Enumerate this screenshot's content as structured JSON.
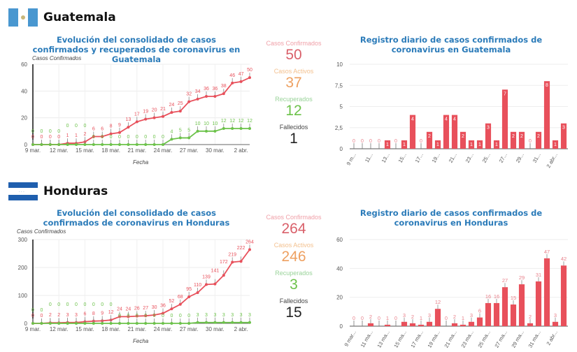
{
  "colors": {
    "confirmed": "#e8505b",
    "recovered": "#6cc24a",
    "title": "#2b7bb9",
    "active": "#eea060",
    "deaths": "#222222"
  },
  "guatemala": {
    "name": "Guatemala",
    "line_title": "Evolución del consolidado de casos confirmados y recuperados de coronavirus en Guatemala",
    "bar_title": "Registro diario de casos confirmados de coronavirus en Guatemala",
    "stats": {
      "confirmed_label": "Casos Confirmados",
      "confirmed": "50",
      "active_label": "Casos Activos",
      "active": "37",
      "recovered_label": "Recuperados",
      "recovered": "12",
      "deaths_label": "Fallecidos",
      "deaths": "1"
    }
  },
  "honduras": {
    "name": "Honduras",
    "line_title": "Evolución del consolidado de casos confirmados de coronavirus en Honduras",
    "bar_title": "Registro diario de casos confirmados de coronavirus en Honduras",
    "stats": {
      "confirmed_label": "Casos Confirmados",
      "confirmed": "264",
      "active_label": "Casos Activos",
      "active": "246",
      "recovered_label": "Recuperados",
      "recovered": "3",
      "deaths_label": "Fallecidos",
      "deaths": "15"
    }
  },
  "chart_data": [
    {
      "type": "line",
      "title": "Evolución del consolidado de casos confirmados y recuperados de coronavirus en Guatemala",
      "xlabel": "Fecha",
      "ylabel": "Casos Confirmados",
      "ylim": [
        0,
        60
      ],
      "yticks": [
        0,
        20,
        40,
        60
      ],
      "xticks": [
        "9 mar.",
        "12 mar.",
        "15 mar.",
        "18 mar.",
        "21 mar.",
        "24 mar.",
        "27 mar.",
        "30 mar.",
        "2 abr."
      ],
      "series": [
        {
          "values": [
            0,
            0,
            0,
            0,
            1,
            1,
            2,
            6,
            6,
            8,
            9,
            13,
            17,
            19,
            20,
            21,
            24,
            25,
            32,
            34,
            36,
            36,
            38,
            46,
            47,
            50
          ],
          "color": "#e8505b"
        },
        {
          "values": [
            0,
            0,
            0,
            0,
            0,
            0,
            0,
            0,
            0,
            0,
            0,
            0,
            0,
            0,
            0,
            0,
            4,
            5,
            5,
            10,
            10,
            10,
            12,
            12,
            12,
            12
          ],
          "color": "#6cc24a"
        }
      ]
    },
    {
      "type": "bar",
      "title": "Registro diario de casos confirmados de coronavirus en Guatemala",
      "ylim": [
        0,
        10
      ],
      "yticks": [
        "0",
        "2,5",
        "5",
        "7,5",
        "10"
      ],
      "ytick_values": [
        0,
        2.5,
        5,
        7.5,
        10
      ],
      "xticks": [
        "9 m...",
        "11...",
        "13...",
        "15...",
        "17...",
        "19...",
        "21...",
        "23...",
        "25...",
        "27...",
        "29...",
        "31...",
        "2 abr..."
      ],
      "values": [
        0,
        0,
        0,
        0,
        1,
        0,
        1,
        4,
        0,
        2,
        1,
        4,
        4,
        2,
        1,
        1,
        3,
        1,
        7,
        2,
        2,
        0,
        2,
        8,
        1,
        3
      ]
    },
    {
      "type": "line",
      "title": "Evolución del consolidado de casos confirmados de coronavirus en Honduras",
      "xlabel": "Fecha",
      "ylabel": "Casos Confirmados",
      "ylim": [
        0,
        300
      ],
      "yticks": [
        0,
        100,
        200,
        300
      ],
      "xticks": [
        "9 mar.",
        "12 mar.",
        "15 mar.",
        "18 mar.",
        "21 mar.",
        "24 mar.",
        "27 mar.",
        "30 mar.",
        "2 abr."
      ],
      "series": [
        {
          "values": [
            0,
            0,
            2,
            2,
            3,
            3,
            6,
            8,
            9,
            12,
            24,
            24,
            26,
            27,
            30,
            36,
            52,
            68,
            95,
            110,
            139,
            141,
            172,
            219,
            222,
            264
          ],
          "color": "#e8505b"
        },
        {
          "values": [
            0,
            0,
            0,
            0,
            0,
            0,
            0,
            0,
            0,
            0,
            0,
            0,
            0,
            0,
            0,
            0,
            0,
            0,
            0,
            3,
            3,
            3,
            3,
            3,
            3,
            3
          ],
          "color": "#6cc24a"
        }
      ]
    },
    {
      "type": "bar",
      "title": "Registro diario de casos confirmados de coronavirus en Honduras",
      "ylim": [
        0,
        60
      ],
      "yticks": [
        "0",
        "20",
        "40",
        "60"
      ],
      "ytick_values": [
        0,
        20,
        40,
        60
      ],
      "xticks": [
        "9 mar...",
        "11 ma...",
        "13 ma...",
        "15 ma...",
        "17 ma...",
        "19 ma...",
        "21 ma...",
        "23 ma...",
        "25 ma...",
        "27 ma...",
        "29 ma...",
        "31 ma...",
        "2 abr..."
      ],
      "values": [
        0,
        0,
        2,
        0,
        1,
        0,
        3,
        2,
        1,
        3,
        12,
        0,
        2,
        1,
        3,
        6,
        16,
        16,
        27,
        15,
        29,
        2,
        31,
        47,
        3,
        42
      ]
    }
  ]
}
